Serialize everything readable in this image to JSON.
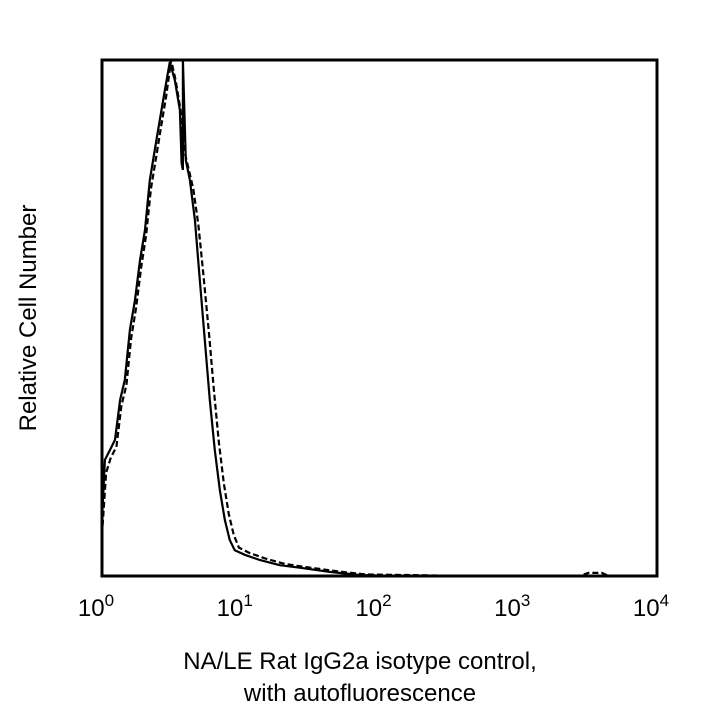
{
  "chart_data": {
    "type": "line",
    "title": "",
    "xlabel_line1": "NA/LE Rat IgG2a isotype control,",
    "xlabel_line2": "with autofluorescence",
    "ylabel": "Relative Cell Number",
    "x_scale": "log",
    "xlim": [
      1,
      10000
    ],
    "ylim": [
      0,
      100
    ],
    "grid": false,
    "legend": "none",
    "x_tick_labels": [
      {
        "base": "10",
        "exp": "0",
        "value": 1
      },
      {
        "base": "10",
        "exp": "1",
        "value": 10
      },
      {
        "base": "10",
        "exp": "2",
        "value": 100
      },
      {
        "base": "10",
        "exp": "3",
        "value": 1000
      },
      {
        "base": "10",
        "exp": "4",
        "value": 10000
      }
    ],
    "series": [
      {
        "style": "solid",
        "color": "#000000",
        "x": [
          1.0,
          1.05,
          1.14,
          1.24,
          1.35,
          1.46,
          1.59,
          1.73,
          1.88,
          2.04,
          2.21,
          2.4,
          2.61,
          2.84,
          3.08,
          3.35,
          3.64,
          3.75,
          3.83,
          3.83,
          4.02,
          4.3,
          4.67,
          5.07,
          5.51,
          5.98,
          6.5,
          7.06,
          7.67,
          8.33,
          9.05,
          10.7,
          13.7,
          19.1,
          26.6,
          43.7,
          71.8,
          139,
          10000
        ],
        "y": [
          10.9,
          22.5,
          24.4,
          26.4,
          34.1,
          38.0,
          47.7,
          53.5,
          61.2,
          67.1,
          76.7,
          82.6,
          88.4,
          94.2,
          99.6,
          96.1,
          90.3,
          80,
          78.7,
          100,
          80.6,
          76.7,
          69.0,
          57.4,
          45.7,
          34.1,
          24.4,
          16.7,
          10.9,
          7.0,
          5.0,
          4.1,
          3.1,
          2.1,
          1.6,
          0.8,
          0.2,
          0,
          0
        ]
      },
      {
        "style": "dashed",
        "color": "#000000",
        "x": [
          1.0,
          1.07,
          1.16,
          1.27,
          1.38,
          1.5,
          1.62,
          1.76,
          1.92,
          2.08,
          2.25,
          2.45,
          2.66,
          2.9,
          3.15,
          3.4,
          3.7,
          3.95,
          4.2,
          4.55,
          4.95,
          5.4,
          5.9,
          6.4,
          6.95,
          7.55,
          8.2,
          8.9,
          9.7,
          11.5,
          15,
          21,
          30,
          50,
          80,
          160,
          400,
          2800,
          3200,
          4000,
          4500,
          10000
        ],
        "y": [
          8,
          20,
          23,
          25,
          33,
          37,
          46,
          52,
          60,
          66,
          75,
          81,
          87,
          93,
          100,
          96,
          90,
          82,
          79,
          75,
          68,
          58,
          47,
          36,
          26,
          18,
          12,
          8,
          5.5,
          4.5,
          3.4,
          2.3,
          1.7,
          0.9,
          0.3,
          0.2,
          0,
          0,
          0.6,
          0.6,
          0,
          0
        ]
      }
    ]
  }
}
